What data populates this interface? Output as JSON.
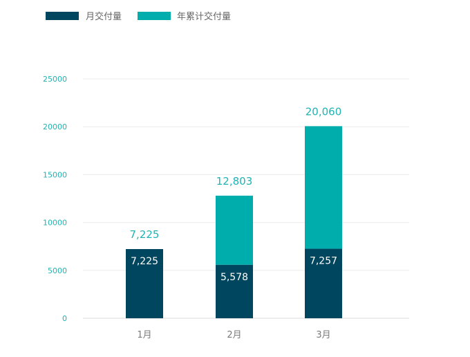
{
  "chart_data": {
    "type": "bar",
    "stacked": true,
    "categories": [
      "1月",
      "2月",
      "3月"
    ],
    "series": [
      {
        "name": "月交付量",
        "values": [
          7225,
          5578,
          7257
        ],
        "value_labels": [
          "7,225",
          "5,578",
          "7,257"
        ]
      },
      {
        "name": "年累计交付量",
        "values": [
          7225,
          12803,
          20060
        ],
        "value_labels": [
          "7,225",
          "12,803",
          "20,060"
        ]
      }
    ],
    "ylim": [
      0,
      25000
    ],
    "yticks": [
      "0",
      "5000",
      "10000",
      "15000",
      "20000",
      "25000"
    ],
    "grid": true,
    "legend_position": "top-left",
    "colors": {
      "月交付量": "#00465e",
      "年累计交付量": "#00adad"
    }
  }
}
